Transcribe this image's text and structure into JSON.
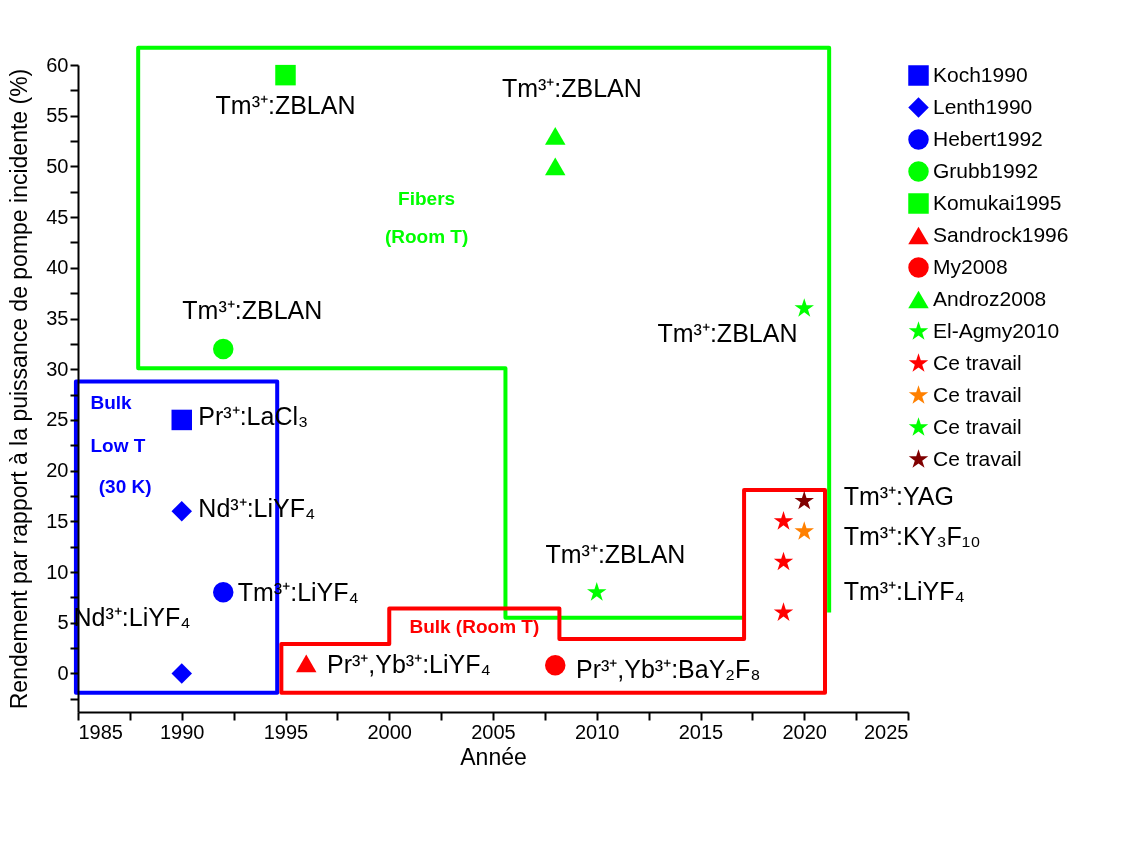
{
  "chart_data": {
    "type": "scatter",
    "xlabel": "Année",
    "ylabel": "Rendement par rapport à la puissance de pompe incidente (%)",
    "xlim": [
      1985,
      2025
    ],
    "ylim": [
      -3.8,
      60
    ],
    "xticks": [
      1985,
      {
        "value": 1987.5,
        "label": null
      },
      1990,
      {
        "value": 1992.5,
        "label": null
      },
      1995,
      {
        "value": 1997.5,
        "label": null
      },
      2000,
      {
        "value": 2002.5,
        "label": null
      },
      2005,
      {
        "value": 2007.5,
        "label": null
      },
      2010,
      {
        "value": 2012.5,
        "label": null
      },
      2015,
      {
        "value": 2017.5,
        "label": null
      },
      2020,
      {
        "value": 2022.5,
        "label": null
      },
      2025
    ],
    "yticks": [
      {
        "value": -2.5,
        "label": null
      },
      0,
      {
        "value": 2.5,
        "label": null
      },
      5,
      {
        "value": 7.5,
        "label": null
      },
      10,
      {
        "value": 12.5,
        "label": null
      },
      15,
      {
        "value": 17.5,
        "label": null
      },
      20,
      {
        "value": 22.5,
        "label": null
      },
      25,
      {
        "value": 27.5,
        "label": null
      },
      30,
      {
        "value": 32.5,
        "label": null
      },
      35,
      {
        "value": 37.5,
        "label": null
      },
      40,
      {
        "value": 42.5,
        "label": null
      },
      45,
      {
        "value": 47.5,
        "label": null
      },
      50,
      {
        "value": 52.5,
        "label": null
      },
      55,
      {
        "value": 57.5,
        "label": null
      },
      60
    ],
    "grid": false,
    "legend": "right",
    "series": [
      {
        "name": "Koch1990",
        "color": "#0000ff",
        "marker": "square",
        "x": [
          1990
        ],
        "values": [
          25
        ]
      },
      {
        "name": "Lenth1990",
        "color": "#0000ff",
        "marker": "diamond",
        "x": [
          1990,
          1990
        ],
        "values": [
          16,
          0
        ]
      },
      {
        "name": "Hebert1992",
        "color": "#0000ff",
        "marker": "circle",
        "x": [
          1992
        ],
        "values": [
          8
        ]
      },
      {
        "name": "Grubb1992",
        "color": "#00ff00",
        "marker": "circle",
        "x": [
          1992
        ],
        "values": [
          32
        ]
      },
      {
        "name": "Komukai1995",
        "color": "#00ff00",
        "marker": "square",
        "x": [
          1995
        ],
        "values": [
          59
        ]
      },
      {
        "name": "Sandrock1996",
        "color": "#ff0000",
        "marker": "triangle",
        "x": [
          1996
        ],
        "values": [
          1
        ]
      },
      {
        "name": "My2008",
        "color": "#ff0000",
        "marker": "circle",
        "x": [
          2008
        ],
        "values": [
          0.8
        ]
      },
      {
        "name": "Androz2008",
        "color": "#00ff00",
        "marker": "triangle",
        "x": [
          2008,
          2008
        ],
        "values": [
          53,
          50
        ]
      },
      {
        "name": "El-Agmy2010",
        "color": "#00ff00",
        "marker": "star",
        "x": [
          2010
        ],
        "values": [
          8
        ]
      },
      {
        "name": "Ce travail",
        "color": "#ff0000",
        "marker": "star",
        "x": [
          2019,
          2019,
          2019
        ],
        "values": [
          15,
          11,
          6
        ]
      },
      {
        "name": "Ce travail",
        "color": "#ff8000",
        "marker": "star",
        "x": [
          2020
        ],
        "values": [
          14
        ]
      },
      {
        "name": "Ce travail",
        "color": "#00ff00",
        "marker": "star",
        "x": [
          2020
        ],
        "values": [
          36
        ]
      },
      {
        "name": "Ce travail",
        "color": "#800000",
        "marker": "star",
        "x": [
          2020
        ],
        "values": [
          17
        ]
      }
    ],
    "annotations": [
      "Tm³⁺:ZBLAN",
      "Tm³⁺:ZBLAN",
      "Tm³⁺:ZBLAN",
      "Tm³⁺:ZBLAN",
      "Pr³⁺:LaCl₃",
      "Nd³⁺:LiYF₄",
      "Tm³⁺:LiYF₄",
      "Nd³⁺:LiYF₄",
      "Pr³⁺,Yb³⁺:LiYF₄",
      "Pr³⁺,Yb³⁺:BaY₂F₈",
      "Tm³⁺:ZBLAN",
      "Tm³⁺:YAG",
      "Tm³⁺:KY₃F₁₀",
      "Tm³⁺:LiYF₄",
      "Fibers",
      "(Room T)",
      "Bulk",
      "Low T",
      "(30 K)",
      "Bulk (Room T)"
    ]
  }
}
